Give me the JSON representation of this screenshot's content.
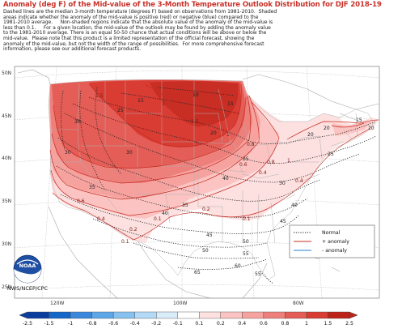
{
  "title": "Anomaly (deg F) of the Mid-value of the 3-Month Temperature Outlook Distribution for DJF 2018-19",
  "description_lines": [
    "Dashed lines are the median 3-month temperature (degrees F) based on observations from 1981-2010.  Shaded",
    "areas indicate whether the anomaly of the mid-value is positive (red) or negative (blue) compared to the",
    "1981-2010 average.     Non-shaded regions indicate that the absolute value of the anomaly of the mid-value is",
    "less than 0.1.     For a given location, the mid-value of the outlook may be found by adding the anomaly value",
    "to the 1981-2010 average. There is an equal 50-50 chance that actual conditions will be above or below the",
    "mid-value.  Please note that this product is a limited representation of the official forecast, showing the",
    "anomaly of the mid-value, but not the width of the range of possibilities.  For more comprehensive forecast",
    "information, please see our additional forecast products."
  ],
  "axes": {
    "lat_labels": [
      "50N",
      "45N",
      "40N",
      "35N",
      "30N",
      "25N"
    ],
    "lon_labels": [
      "120W",
      "100W",
      "80W"
    ]
  },
  "median_contour_labels": [
    "10",
    "15",
    "15",
    "20",
    "25",
    "30",
    "30",
    "30",
    "35",
    "40",
    "45",
    "50",
    "55",
    "60",
    "65",
    "25",
    "20",
    "20",
    "25",
    "30",
    "20",
    "15",
    "40",
    "45",
    "50",
    "55",
    "35",
    "40"
  ],
  "anomaly_contour_labels": [
    "1.5",
    "1",
    "1.5",
    "1",
    "0.8",
    "0.6",
    "0.4",
    "0.2",
    "0.1",
    "0.1",
    "0.6",
    "0.4",
    "0.2",
    "0.1",
    "0.8",
    "1",
    "0.4"
  ],
  "legend": {
    "normal": "Normal",
    "plus": "+ anomaly",
    "minus": "- anomaly"
  },
  "colors": {
    "red_anomaly": "#d8392b",
    "blue_anomaly": "#2a7fd0",
    "title": "#c8322a"
  },
  "colorbar": {
    "labels": [
      "-2.5",
      "-1.5",
      "-1",
      "-0.8",
      "-0.6",
      "-0.4",
      "-0.2",
      "-0.1",
      "0.1",
      "0.2",
      "0.4",
      "0.6",
      "0.8",
      "1",
      "1.5",
      "2.5"
    ],
    "colors": [
      "#0b3d9e",
      "#1466c7",
      "#3a88dc",
      "#5da6e7",
      "#86c1ef",
      "#b2d9f6",
      "#d9ecfa",
      "#ffffff",
      "#fde0e0",
      "#fbc4c2",
      "#f6a3a0",
      "#ee807c",
      "#e45d56",
      "#d83c33",
      "#bd2419"
    ]
  },
  "logo": {
    "text": "NOAA",
    "caption": "NWS/NCEP/CPC"
  }
}
